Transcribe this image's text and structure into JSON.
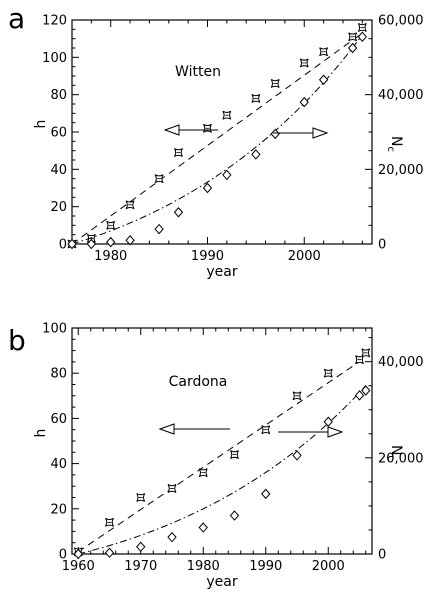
{
  "chart_data": [
    {
      "type": "scatter",
      "panel_label": "a",
      "annotation": "Witten",
      "xlabel": "year",
      "ylabel_left": "h",
      "ylabel_right": "N",
      "ylabel_right_sub": "c",
      "xlim": [
        1976,
        2007
      ],
      "ylim_left": [
        0,
        120
      ],
      "ylim_right": [
        0,
        60000
      ],
      "xticks": [
        1980,
        1990,
        2000
      ],
      "yticks_left": [
        0,
        20,
        40,
        60,
        80,
        100,
        120
      ],
      "yticks_right": [
        0,
        20000,
        40000,
        60000
      ],
      "yticks_right_labels": [
        "0",
        "20,000",
        "40,000",
        "60,000"
      ],
      "series": [
        {
          "axis": "left",
          "marker": "square-star",
          "x": [
            1976,
            1978,
            1980,
            1982,
            1985,
            1987,
            1990,
            1992,
            1995,
            1997,
            2000,
            2002,
            2005,
            2006
          ],
          "y": [
            0,
            3,
            10,
            21,
            35,
            49,
            62,
            69,
            78,
            86,
            97,
            103,
            111,
            116
          ],
          "fit": {
            "style": "dashed",
            "x": [
              1976,
              2006
            ],
            "y": [
              0,
              113
            ]
          }
        },
        {
          "axis": "right",
          "marker": "diamond",
          "x": [
            1976,
            1978,
            1980,
            1982,
            1985,
            1987,
            1990,
            1992,
            1995,
            1997,
            2000,
            2002,
            2005,
            2006
          ],
          "y": [
            0,
            0,
            500,
            1000,
            4000,
            8500,
            15000,
            18500,
            24000,
            29500,
            38000,
            44000,
            52500,
            55500
          ],
          "fit": {
            "style": "dashdot",
            "x": [
              1976,
              2006
            ],
            "y": [
              0,
              56000
            ]
          }
        }
      ],
      "arrows": [
        {
          "direction": "left",
          "target_axis": "left"
        },
        {
          "direction": "right",
          "target_axis": "right"
        }
      ]
    },
    {
      "type": "scatter",
      "panel_label": "b",
      "annotation": "Cardona",
      "xlabel": "year",
      "ylabel_left": "h",
      "ylabel_right": "N",
      "ylabel_right_sub": "c",
      "xlim": [
        1959,
        2007
      ],
      "ylim_left": [
        0,
        100
      ],
      "ylim_right": [
        0,
        47000
      ],
      "xticks": [
        1960,
        1970,
        1980,
        1990,
        2000
      ],
      "yticks_left": [
        0,
        20,
        40,
        60,
        80,
        100
      ],
      "yticks_right": [
        0,
        20000,
        40000
      ],
      "yticks_right_labels": [
        "0",
        "20,000",
        "40,000"
      ],
      "series": [
        {
          "axis": "left",
          "marker": "square-star",
          "x": [
            1960,
            1965,
            1970,
            1975,
            1980,
            1985,
            1990,
            1995,
            2000,
            2005,
            2006
          ],
          "y": [
            1,
            14,
            25,
            29,
            36,
            44,
            55,
            70,
            80,
            86,
            89
          ],
          "fit": {
            "style": "dashed",
            "x": [
              1960,
              2006
            ],
            "y": [
              1,
              87
            ]
          }
        },
        {
          "axis": "right",
          "marker": "diamond",
          "x": [
            1960,
            1965,
            1970,
            1975,
            1980,
            1985,
            1990,
            1995,
            2000,
            2005,
            2006
          ],
          "y": [
            0,
            250,
            1500,
            3500,
            5500,
            8000,
            12500,
            20500,
            27500,
            33000,
            34000
          ],
          "fit": {
            "style": "dashdot",
            "x": [
              1960,
              2006
            ],
            "y": [
              0,
              35000
            ]
          }
        }
      ],
      "arrows": [
        {
          "direction": "left",
          "target_axis": "left"
        },
        {
          "direction": "right",
          "target_axis": "right"
        }
      ]
    }
  ]
}
